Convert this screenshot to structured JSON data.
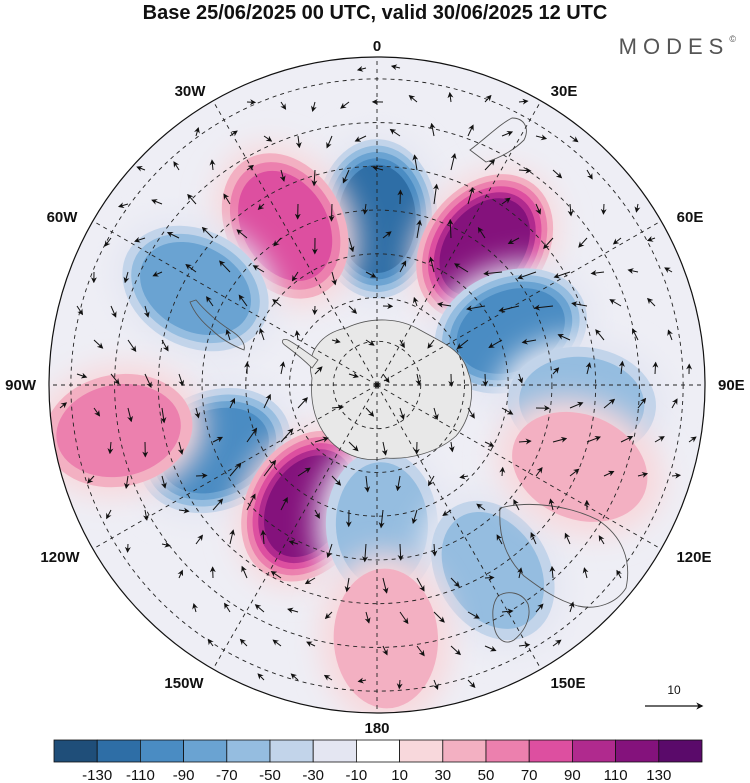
{
  "title": "Base 25/06/2025 00 UTC, valid 30/06/2025 12 UTC",
  "brand": "MODES",
  "brand_mark": "©",
  "longitude_labels": {
    "lon_0": "0",
    "lon_30e": "30E",
    "lon_60e": "60E",
    "lon_90e": "90E",
    "lon_120e": "120E",
    "lon_150e": "150E",
    "lon_180": "180",
    "lon_150w": "150W",
    "lon_120w": "120W",
    "lon_90w": "90W",
    "lon_60w": "60W",
    "lon_30w": "30W"
  },
  "reference_vector": {
    "label": "10"
  },
  "colorbar": {
    "ticks": [
      "-130",
      "-110",
      "-90",
      "-70",
      "-50",
      "-30",
      "-10",
      "10",
      "30",
      "50",
      "70",
      "90",
      "110",
      "130"
    ],
    "colors": [
      "#1f4e79",
      "#2e6ea6",
      "#4a8cc3",
      "#6aa3d2",
      "#95bde0",
      "#c2d4ea",
      "#e4e6f2",
      "#ffffff",
      "#f8d8dc",
      "#f3b0c2",
      "#ec80ae",
      "#dd4fa0",
      "#b02a8e",
      "#84127c",
      "#5a0a6a"
    ]
  },
  "anomaly_centers": [
    {
      "lon": 0,
      "lat": -52,
      "value": -125
    },
    {
      "lon": 38,
      "lat": -50,
      "value": 120
    },
    {
      "lon": -30,
      "lat": -48,
      "value": 85
    },
    {
      "lon": -62,
      "lat": -43,
      "value": -70
    },
    {
      "lon": 68,
      "lat": -57,
      "value": -90
    },
    {
      "lon": 95,
      "lat": -43,
      "value": -60
    },
    {
      "lon": -112,
      "lat": -50,
      "value": -90
    },
    {
      "lon": -100,
      "lat": -30,
      "value": 50
    },
    {
      "lon": -150,
      "lat": -58,
      "value": 125
    },
    {
      "lon": 178,
      "lat": -58,
      "value": -60
    },
    {
      "lon": 148,
      "lat": -40,
      "value": -55
    },
    {
      "lon": 112,
      "lat": -40,
      "value": 40
    },
    {
      "lon": 178,
      "lat": -32,
      "value": 35
    }
  ]
}
